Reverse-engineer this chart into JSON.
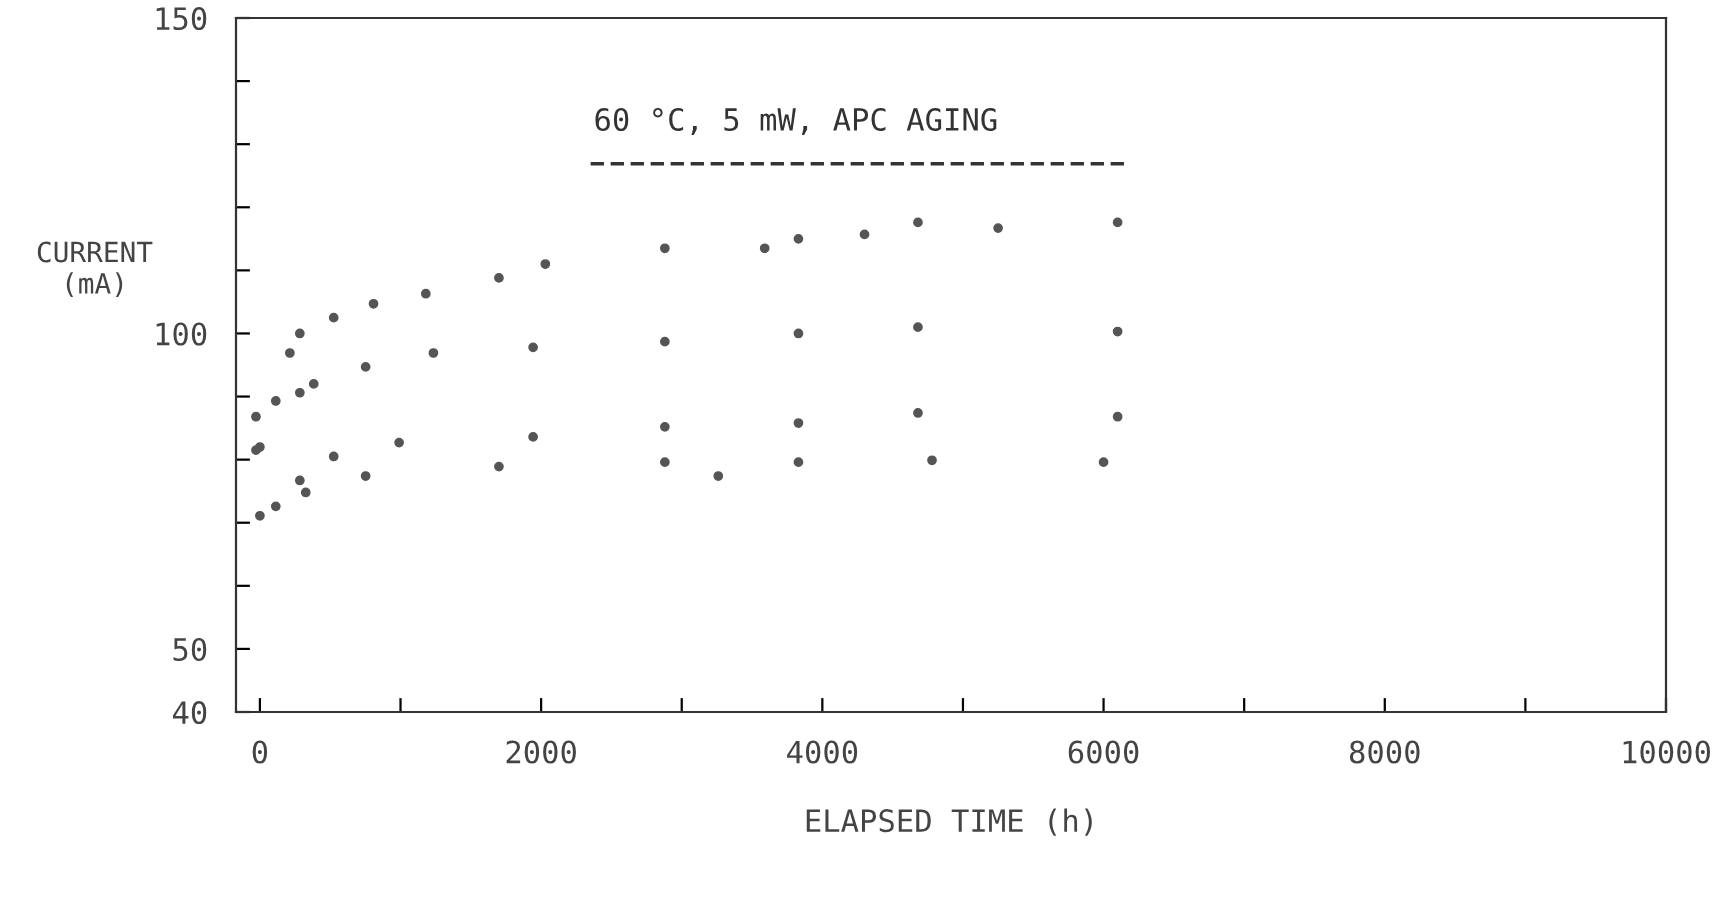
{
  "chart_data": {
    "type": "scatter",
    "title": "60 °C, 5 mW, APC AGING",
    "xlabel": "ELAPSED TIME (h)",
    "ylabel": "CURRENT\n(mA)",
    "marker": "circle",
    "grid": false,
    "legend": false,
    "xlim": [
      -170,
      10000
    ],
    "ylim": [
      40,
      150
    ],
    "xticks": [
      0,
      {
        "value": 1000,
        "label": null
      },
      2000,
      {
        "value": 3000,
        "label": null
      },
      4000,
      {
        "value": 5000,
        "label": null
      },
      6000,
      {
        "value": 7000,
        "label": null
      },
      8000,
      {
        "value": 9000,
        "label": null
      },
      10000
    ],
    "yticks": [
      40,
      50,
      {
        "value": 60,
        "label": null
      },
      {
        "value": 70,
        "label": null
      },
      {
        "value": 80,
        "label": null
      },
      {
        "value": 90,
        "label": null
      },
      100,
      {
        "value": 110,
        "label": null
      },
      {
        "value": 120,
        "label": null
      },
      {
        "value": 130,
        "label": null
      },
      {
        "value": 140,
        "label": null
      },
      150
    ],
    "series": [
      {
        "color": "#555555",
        "x": [
          213,
          284,
          525,
          808,
          1180,
          1700,
          2030,
          2880,
          3590,
          3830,
          4300,
          4680,
          5250,
          6100
        ],
        "values": [
          96.9,
          100,
          102.5,
          104.7,
          106.3,
          108.8,
          111,
          113.5,
          113.5,
          115,
          115.7,
          117.6,
          116.7,
          117.6
        ]
      },
      {
        "color": "#555555",
        "x": [
          -28,
          113,
          284,
          383,
          752,
          1234,
          1943,
          2880,
          3830,
          4680,
          6100
        ],
        "values": [
          86.8,
          89.3,
          90.6,
          92,
          94.7,
          96.9,
          97.8,
          98.7,
          100,
          101,
          100.3
        ]
      },
      {
        "color": "#555555",
        "x": [
          -28,
          0,
          525,
          990,
          1943,
          2880,
          3830,
          4680,
          6100
        ],
        "values": [
          81.5,
          82,
          80.5,
          82.7,
          83.6,
          85.2,
          85.8,
          87.4,
          86.8
        ]
      },
      {
        "color": "#555555",
        "x": [
          0,
          113,
          326,
          284,
          752,
          1700,
          2880,
          3260,
          3830,
          4780,
          6000
        ],
        "values": [
          71.1,
          72.6,
          74.8,
          76.7,
          77.4,
          78.9,
          79.6,
          77.4,
          79.6,
          79.9,
          79.6
        ]
      }
    ]
  }
}
